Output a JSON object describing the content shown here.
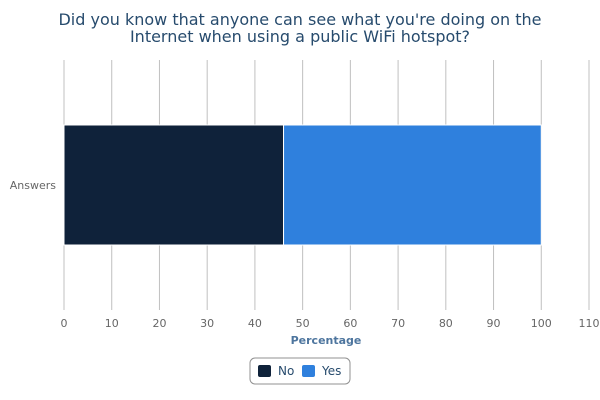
{
  "chart_data": {
    "type": "bar",
    "orientation": "horizontal",
    "stacked": true,
    "title": "Did you know that anyone can see what you're doing on the Internet when using a public WiFi hotspot?",
    "title_lines": [
      "Did you know that anyone can see what you're doing on the",
      "Internet when using a public WiFi hotspot?"
    ],
    "categories": [
      "Answers"
    ],
    "series": [
      {
        "name": "No",
        "values": [
          46
        ],
        "color": "#0f223a"
      },
      {
        "name": "Yes",
        "values": [
          54
        ],
        "color": "#2f80dd"
      }
    ],
    "xlabel": "Percentage",
    "ylabel": "",
    "xlim": [
      0,
      110
    ],
    "x_ticks": [
      "0",
      "10",
      "20",
      "30",
      "40",
      "50",
      "60",
      "70",
      "80",
      "90",
      "100",
      "110"
    ],
    "grid": true,
    "legend_position": "bottom-center"
  }
}
